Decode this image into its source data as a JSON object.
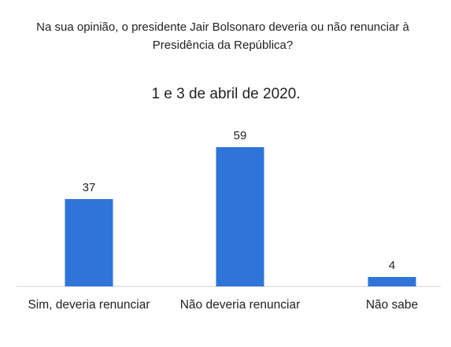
{
  "chart_data": {
    "type": "bar",
    "title_lines": [
      "Na sua opinião, o presidente Jair Bolsonaro deveria ou não renunciar à",
      "Presidência da República?"
    ],
    "subtitle": "1 e 3 de abril de 2020.",
    "categories": [
      "Sim, deveria renunciar",
      "Não deveria renunciar",
      "Não sabe"
    ],
    "values": [
      37,
      59,
      4
    ],
    "xlabel": "",
    "ylabel": "",
    "ylim": [
      0,
      62
    ],
    "grid": false,
    "legend": "none",
    "bar_color": "#2f74d9",
    "axis_color": "#d0d0d0"
  }
}
